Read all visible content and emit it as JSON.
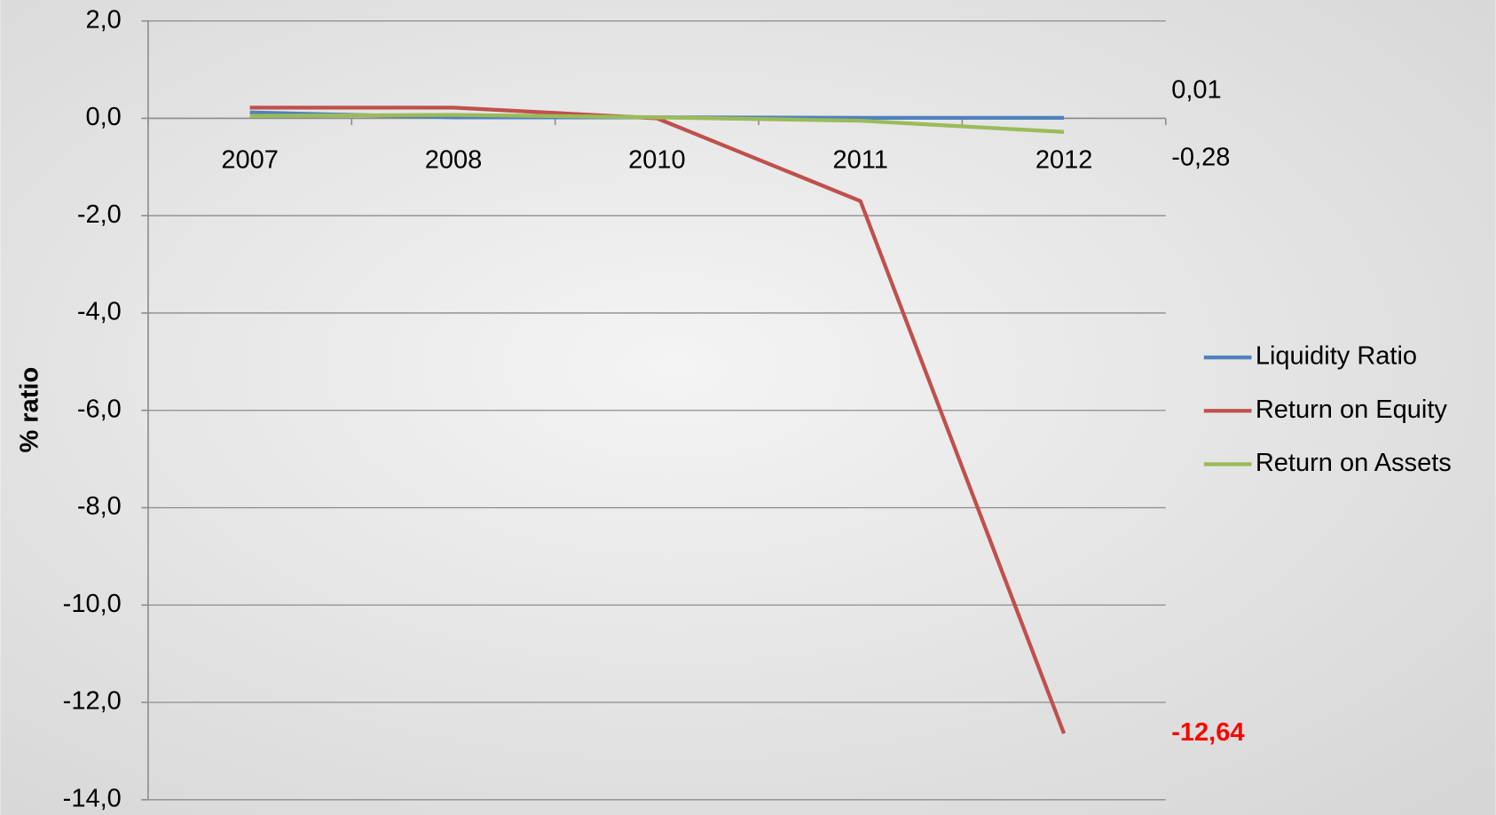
{
  "chart_data": {
    "type": "line",
    "y_axis_label": "% ratio",
    "categories": [
      "2007",
      "2008",
      "2010",
      "2011",
      "2012"
    ],
    "series": [
      {
        "name": "Liquidity Ratio",
        "color": "#4f81bd",
        "values": [
          0.12,
          0.02,
          0.02,
          0.01,
          0.01
        ],
        "value_labels": [
          null,
          null,
          null,
          null,
          "0,01"
        ]
      },
      {
        "name": "Return on Equity",
        "color": "#c0504d",
        "values": [
          0.22,
          0.22,
          0.0,
          -1.7,
          -12.64
        ],
        "value_labels": [
          null,
          null,
          null,
          null,
          "-12,64"
        ]
      },
      {
        "name": "Return on Assets",
        "color": "#9bbb59",
        "values": [
          0.05,
          0.07,
          0.02,
          -0.05,
          -0.28
        ],
        "value_labels": [
          null,
          null,
          null,
          null,
          "-0,28"
        ]
      }
    ],
    "ylim": [
      -14,
      2
    ],
    "yticks": [
      {
        "value": -14,
        "label": "-14,0"
      },
      {
        "value": -12,
        "label": "-12,0"
      },
      {
        "value": -10,
        "label": "-10,0"
      },
      {
        "value": -8,
        "label": "-8,0"
      },
      {
        "value": -6,
        "label": "-6,0"
      },
      {
        "value": -4,
        "label": "-4,0"
      },
      {
        "value": -2,
        "label": "-2,0"
      },
      {
        "value": 0,
        "label": "0,0"
      },
      {
        "value": 2,
        "label": "2,0"
      }
    ],
    "grid": true,
    "legend": "right"
  }
}
